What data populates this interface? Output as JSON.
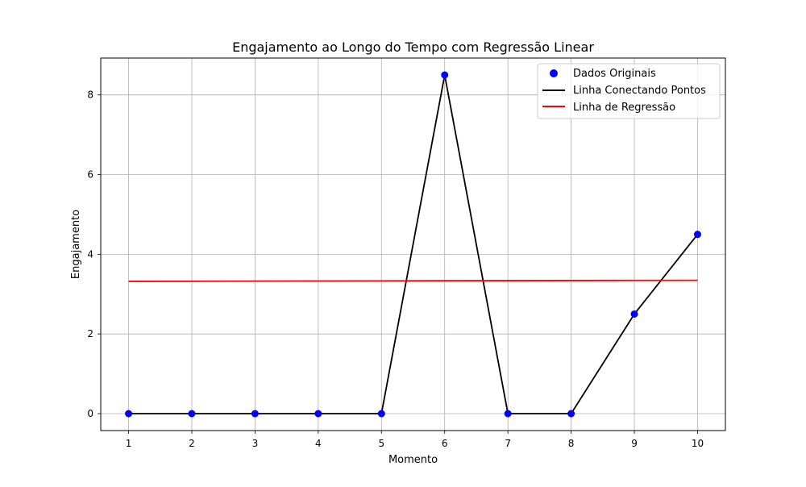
{
  "chart_data": {
    "type": "line",
    "title": "Engajamento ao Longo do Tempo com Regressão Linear",
    "xlabel": "Momento",
    "ylabel": "Engajamento",
    "xlim": [
      0.56,
      10.44
    ],
    "ylim": [
      -0.425,
      8.925
    ],
    "xticks": [
      1,
      2,
      3,
      4,
      5,
      6,
      7,
      8,
      9,
      10
    ],
    "yticks": [
      0,
      2,
      4,
      6,
      8
    ],
    "grid": true,
    "legend_position": "top-right",
    "x": [
      1,
      2,
      3,
      4,
      5,
      6,
      7,
      8,
      9,
      10
    ],
    "series": [
      {
        "name": "Dados Originais",
        "kind": "scatter",
        "color": "#0000ff",
        "values": [
          0,
          0,
          0,
          0,
          0,
          8.5,
          0,
          0,
          2.5,
          4.5
        ]
      },
      {
        "name": "Linha Conectando Pontos",
        "kind": "line",
        "color": "#000000",
        "values": [
          0,
          0,
          0,
          0,
          0,
          8.5,
          0,
          0,
          2.5,
          4.5
        ]
      },
      {
        "name": "Linha de Regressão",
        "kind": "line",
        "color": "#ff0000",
        "values": [
          3.32,
          3.323,
          3.326,
          3.329,
          3.332,
          3.335,
          3.338,
          3.341,
          3.344,
          3.347
        ]
      }
    ]
  }
}
